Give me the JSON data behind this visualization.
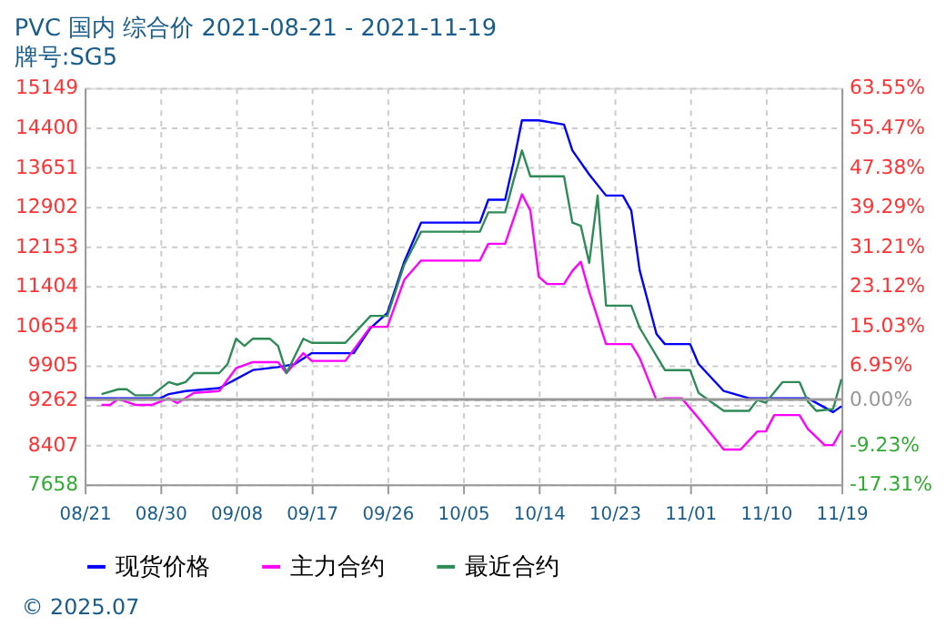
{
  "chart_data": {
    "type": "line",
    "title": "PVC 国内 综合价 2021-08-21 - 2021-11-19",
    "subtitle": "牌号:SG5",
    "xlim": [
      "2021-08-21",
      "2021-11-19"
    ],
    "xticks": [
      {
        "value": "2021-08-21",
        "label": "08/21"
      },
      {
        "value": "2021-08-30",
        "label": "08/30"
      },
      {
        "value": "2021-09-08",
        "label": "09/08"
      },
      {
        "value": "2021-09-17",
        "label": "09/17"
      },
      {
        "value": "2021-09-26",
        "label": "09/26"
      },
      {
        "value": "2021-10-05",
        "label": "10/05"
      },
      {
        "value": "2021-10-14",
        "label": "10/14"
      },
      {
        "value": "2021-10-23",
        "label": "10/23"
      },
      {
        "value": "2021-11-01",
        "label": "11/01"
      },
      {
        "value": "2021-11-10",
        "label": "11/10"
      },
      {
        "value": "2021-11-19",
        "label": "11/19"
      }
    ],
    "ylim": [
      7658,
      15149
    ],
    "yticks": [
      7658,
      8407,
      {
        "value": 9156,
        "label": null
      },
      9262,
      9905,
      10654,
      11404,
      12153,
      12902,
      13651,
      14400,
      15149
    ],
    "y2lim": [
      -17.31,
      63.55
    ],
    "y2ticks": [
      {
        "value": -17.31,
        "label": "-17.31%"
      },
      {
        "value": -9.23,
        "label": "-9.23%"
      },
      {
        "value": 0,
        "label": "0.00%"
      },
      {
        "value": 6.95,
        "label": "6.95%"
      },
      {
        "value": 15.03,
        "label": "15.03%"
      },
      {
        "value": 23.12,
        "label": "23.12%"
      },
      {
        "value": 31.21,
        "label": "31.21%"
      },
      {
        "value": 39.29,
        "label": "39.29%"
      },
      {
        "value": 47.38,
        "label": "47.38%"
      },
      {
        "value": 55.47,
        "label": "55.47%"
      },
      {
        "value": 63.55,
        "label": "63.55%"
      }
    ],
    "ref_lines": [
      {
        "axis": "y2",
        "value": 0,
        "label": null,
        "color": "#999999"
      }
    ],
    "grid": true,
    "legend": "bottom",
    "marker": "none",
    "line_style": "solid",
    "annotations": [
      "© 2025.07"
    ],
    "series": [
      {
        "name": "现货价格",
        "color": "#0000ff",
        "x": [
          "2021-08-21",
          "2021-08-30",
          "2021-08-31",
          "2021-09-02",
          "2021-09-06",
          "2021-09-08",
          "2021-09-10",
          "2021-09-13",
          "2021-09-15",
          "2021-09-17",
          "2021-09-22",
          "2021-09-24",
          "2021-09-26",
          "2021-09-28",
          "2021-09-30",
          "2021-10-07",
          "2021-10-08",
          "2021-10-10",
          "2021-10-11",
          "2021-10-12",
          "2021-10-14",
          "2021-10-17",
          "2021-10-18",
          "2021-10-20",
          "2021-10-22",
          "2021-10-24",
          "2021-10-25",
          "2021-10-26",
          "2021-10-28",
          "2021-10-29",
          "2021-11-01",
          "2021-11-02",
          "2021-11-05",
          "2021-11-08",
          "2021-11-15",
          "2021-11-18",
          "2021-11-19"
        ],
        "values": [
          9284,
          9284,
          9363,
          9420,
          9475,
          9645,
          9816,
          9874,
          9930,
          10136,
          10136,
          10614,
          10897,
          11862,
          12601,
          12601,
          13034,
          13034,
          13737,
          14534,
          14534,
          14454,
          13965,
          13511,
          13113,
          13113,
          12829,
          11700,
          10498,
          10307,
          10307,
          9931,
          9420,
          9284,
          9284,
          9022,
          9134
        ]
      },
      {
        "name": "主力合约",
        "color": "#ff00ff",
        "x": [
          "2021-08-23",
          "2021-08-24",
          "2021-08-25",
          "2021-08-27",
          "2021-08-29",
          "2021-08-31",
          "2021-09-01",
          "2021-09-03",
          "2021-09-06",
          "2021-09-08",
          "2021-09-10",
          "2021-09-13",
          "2021-09-14",
          "2021-09-16",
          "2021-09-17",
          "2021-09-21",
          "2021-09-24",
          "2021-09-26",
          "2021-09-28",
          "2021-09-30",
          "2021-10-07",
          "2021-10-08",
          "2021-10-10",
          "2021-10-12",
          "2021-10-13",
          "2021-10-14",
          "2021-10-15",
          "2021-10-17",
          "2021-10-18",
          "2021-10-19",
          "2021-10-20",
          "2021-10-22",
          "2021-10-25",
          "2021-10-26",
          "2021-10-28",
          "2021-10-29",
          "2021-10-31",
          "2021-11-02",
          "2021-11-05",
          "2021-11-07",
          "2021-11-09",
          "2021-11-10",
          "2021-11-11",
          "2021-11-14",
          "2021-11-15",
          "2021-11-17",
          "2021-11-18",
          "2021-11-19"
        ],
        "values": [
          9158,
          9158,
          9272,
          9158,
          9158,
          9284,
          9193,
          9386,
          9420,
          9850,
          9966,
          9966,
          9760,
          10136,
          9989,
          9989,
          10634,
          10634,
          11520,
          11885,
          11885,
          12202,
          12202,
          13136,
          12829,
          11578,
          11442,
          11442,
          11691,
          11862,
          11295,
          10307,
          10307,
          10044,
          9250,
          9284,
          9284,
          8909,
          8316,
          8316,
          8657,
          8657,
          8966,
          8966,
          8705,
          8398,
          8398,
          8681
        ]
      },
      {
        "name": "最近合约",
        "color": "#2e8b57",
        "x": [
          "2021-08-23",
          "2021-08-25",
          "2021-08-26",
          "2021-08-27",
          "2021-08-29",
          "2021-08-31",
          "2021-09-01",
          "2021-09-02",
          "2021-09-03",
          "2021-09-06",
          "2021-09-07",
          "2021-09-08",
          "2021-09-09",
          "2021-09-10",
          "2021-09-12",
          "2021-09-13",
          "2021-09-14",
          "2021-09-16",
          "2021-09-17",
          "2021-09-21",
          "2021-09-24",
          "2021-09-26",
          "2021-09-28",
          "2021-09-30",
          "2021-10-07",
          "2021-10-08",
          "2021-10-10",
          "2021-10-11",
          "2021-10-12",
          "2021-10-13",
          "2021-10-17",
          "2021-10-18",
          "2021-10-19",
          "2021-10-20",
          "2021-10-21",
          "2021-10-22",
          "2021-10-25",
          "2021-10-26",
          "2021-10-29",
          "2021-11-01",
          "2021-11-02",
          "2021-11-05",
          "2021-11-08",
          "2021-11-09",
          "2021-11-10",
          "2021-11-12",
          "2021-11-14",
          "2021-11-15",
          "2021-11-16",
          "2021-11-18",
          "2021-11-19"
        ],
        "values": [
          9363,
          9454,
          9454,
          9340,
          9340,
          9590,
          9540,
          9590,
          9760,
          9760,
          9931,
          10409,
          10273,
          10409,
          10409,
          10273,
          9760,
          10409,
          10330,
          10330,
          10839,
          10839,
          11806,
          12430,
          12430,
          12795,
          12795,
          13396,
          13965,
          13476,
          13476,
          12601,
          12543,
          11840,
          13112,
          11033,
          11033,
          10614,
          9816,
          9816,
          9386,
          9045,
          9045,
          9250,
          9200,
          9590,
          9590,
          9224,
          9045,
          9080,
          9645
        ]
      }
    ]
  }
}
